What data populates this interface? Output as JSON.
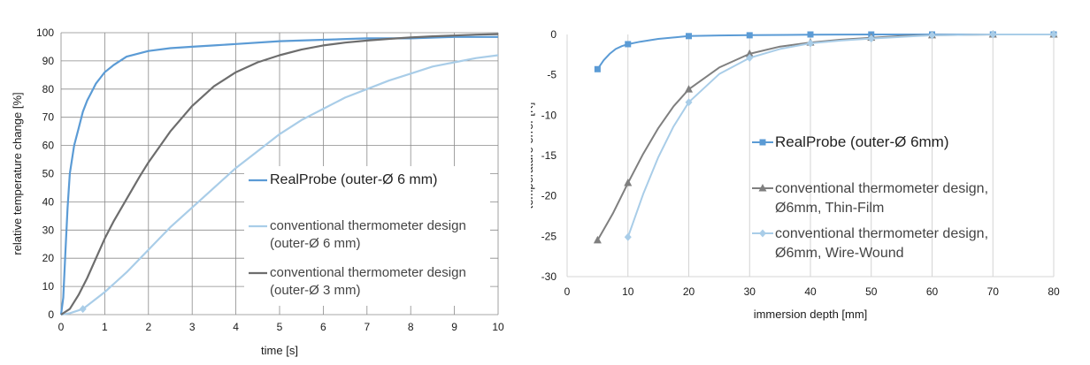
{
  "chart_data": [
    {
      "type": "line",
      "xlabel": "time [s]",
      "ylabel": "relative temperature change [%]",
      "xlim": [
        0,
        10
      ],
      "ylim": [
        0,
        100
      ],
      "xticks": [
        "0",
        "1",
        "2",
        "3",
        "4",
        "5",
        "6",
        "7",
        "8",
        "9",
        "10"
      ],
      "yticks": [
        "0",
        "10",
        "20",
        "30",
        "40",
        "50",
        "60",
        "70",
        "80",
        "90",
        "100"
      ],
      "grid": "both",
      "legend_position": "right",
      "legend": [
        {
          "lines": [
            "RealProbe (outer-Ø 6 mm)"
          ],
          "color": "#5b9bd5"
        },
        {
          "lines": [
            "conventional thermometer design",
            "(outer-Ø 6 mm)"
          ],
          "color": "#a9cde8"
        },
        {
          "lines": [
            "conventional thermometer design",
            "(outer-Ø 3 mm)"
          ],
          "color": "#6d6d6d"
        }
      ],
      "series": [
        {
          "color": "#5b9bd5",
          "x": [
            0,
            0.05,
            0.1,
            0.15,
            0.2,
            0.3,
            0.4,
            0.5,
            0.6,
            0.7,
            0.8,
            0.9,
            1.0,
            1.2,
            1.5,
            2.0,
            2.5,
            3.0,
            3.5,
            4.0,
            5.0,
            6.0,
            7.0,
            8.0,
            9.0,
            10.0
          ],
          "y": [
            0,
            6,
            22,
            38,
            50,
            60,
            66,
            72,
            76,
            79,
            82,
            84,
            86,
            88.5,
            91.5,
            93.5,
            94.5,
            95,
            95.5,
            96,
            97,
            97.5,
            98,
            98,
            98.5,
            98.5
          ]
        },
        {
          "color": "#a9cde8",
          "x": [
            0,
            0.2,
            0.5,
            1.0,
            1.5,
            2.0,
            2.5,
            3.0,
            3.5,
            4.0,
            4.5,
            5.0,
            5.5,
            6.0,
            6.5,
            7.0,
            7.5,
            8.0,
            8.5,
            9.0,
            9.5,
            10.0
          ],
          "y": [
            0,
            0.5,
            2,
            8,
            15,
            23,
            31,
            38,
            45,
            52,
            58,
            64,
            69,
            73,
            77,
            80,
            83,
            85.5,
            88,
            89.5,
            91,
            92
          ],
          "markers_x": [
            0.5
          ]
        },
        {
          "color": "#6d6d6d",
          "x": [
            0,
            0.2,
            0.4,
            0.6,
            0.8,
            1.0,
            1.2,
            1.5,
            1.8,
            2.0,
            2.5,
            3.0,
            3.5,
            4.0,
            4.5,
            5.0,
            5.5,
            6.0,
            6.5,
            7.0,
            7.5,
            8.0,
            8.5,
            9.0,
            9.5,
            10.0
          ],
          "y": [
            0,
            2,
            7,
            13,
            20,
            27,
            33,
            41,
            49,
            54,
            65,
            74,
            81,
            86,
            89.5,
            92,
            94,
            95.5,
            96.5,
            97.2,
            97.8,
            98.3,
            98.7,
            99,
            99.3,
            99.5
          ]
        }
      ]
    },
    {
      "type": "line",
      "xlabel": "immersion depth [mm]",
      "ylabel": "temperature error [K]",
      "xlim": [
        0,
        80
      ],
      "ylim": [
        -30,
        0
      ],
      "xticks": [
        "0",
        "10",
        "20",
        "30",
        "40",
        "50",
        "60",
        "70",
        "80"
      ],
      "yticks": [
        "0",
        "-5",
        "-10",
        "-15",
        "-20",
        "-25",
        "-30"
      ],
      "grid": "vertical",
      "legend_position": "right",
      "legend": [
        {
          "lines": [
            "RealProbe (outer-Ø 6mm)"
          ],
          "color": "#5b9bd5",
          "marker": "square"
        },
        {
          "lines": [
            "conventional thermometer design,",
            "Ø6mm, Thin-Film"
          ],
          "color": "#7f7f7f",
          "marker": "triangle"
        },
        {
          "lines": [
            "conventional thermometer design,",
            "Ø6mm, Wire-Wound"
          ],
          "color": "#a9cde8",
          "marker": "diamond"
        }
      ],
      "series": [
        {
          "color": "#5b9bd5",
          "marker": "square",
          "points_x": [
            5,
            10,
            20,
            30,
            40,
            50,
            60,
            70,
            80
          ],
          "points_y": [
            -4.3,
            -1.2,
            -0.2,
            -0.1,
            0,
            0,
            0,
            0,
            0
          ],
          "x": [
            5,
            6,
            7,
            8,
            9,
            10,
            12,
            15,
            20,
            25,
            30,
            40,
            50,
            60,
            70,
            80
          ],
          "y": [
            -4.3,
            -3.2,
            -2.4,
            -1.8,
            -1.45,
            -1.2,
            -0.9,
            -0.55,
            -0.2,
            -0.12,
            -0.08,
            -0.03,
            0,
            0,
            0,
            0
          ]
        },
        {
          "color": "#7f7f7f",
          "marker": "triangle",
          "points_x": [
            5,
            10,
            20,
            30,
            40,
            50,
            60,
            70,
            80
          ],
          "points_y": [
            -25.5,
            -18.4,
            -6.8,
            -2.4,
            -1,
            -0.4,
            -0.1,
            0,
            0
          ],
          "x": [
            5,
            7.5,
            10,
            12.5,
            15,
            17.5,
            20,
            25,
            30,
            35,
            40,
            45,
            50,
            55,
            60,
            70,
            80
          ],
          "y": [
            -25.5,
            -22.2,
            -18.4,
            -14.8,
            -11.6,
            -8.9,
            -6.8,
            -4.1,
            -2.4,
            -1.5,
            -1.0,
            -0.65,
            -0.4,
            -0.2,
            -0.1,
            0,
            0
          ]
        },
        {
          "color": "#a9cde8",
          "marker": "diamond",
          "points_x": [
            10,
            20,
            30,
            40,
            50,
            60,
            70,
            80
          ],
          "points_y": [
            -25.1,
            -8.4,
            -2.9,
            -1.1,
            -0.5,
            -0.1,
            0,
            0
          ],
          "x": [
            10,
            12.5,
            15,
            17.5,
            20,
            25,
            30,
            35,
            40,
            45,
            50,
            60,
            70,
            80
          ],
          "y": [
            -25.1,
            -19.8,
            -15.2,
            -11.4,
            -8.4,
            -4.9,
            -2.9,
            -1.8,
            -1.1,
            -0.75,
            -0.5,
            -0.1,
            0,
            0
          ]
        }
      ]
    }
  ]
}
